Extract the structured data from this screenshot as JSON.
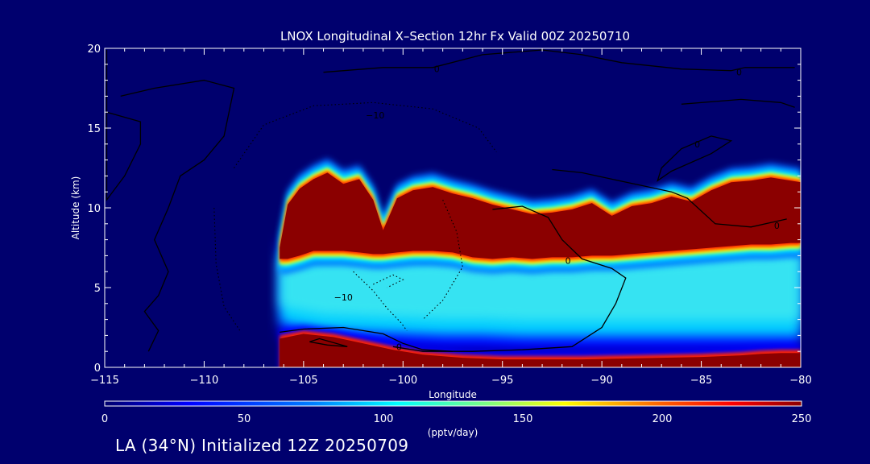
{
  "chart_data": {
    "type": "heatmap",
    "title": "LNOX Longitudinal X–Section 12hr  Fx Valid 00Z 20250710",
    "xlabel": "Longitude",
    "ylabel": "Altitude (km)",
    "xlim": [
      -115,
      -80
    ],
    "ylim": [
      0,
      20
    ],
    "x_ticks": [
      "−115",
      "−110",
      "−105",
      "−100",
      "−95",
      "−90",
      "−85",
      "−80"
    ],
    "x_tick_values": [
      -115,
      -110,
      -105,
      -100,
      -95,
      -90,
      -85,
      -80
    ],
    "y_ticks": [
      "0",
      "5",
      "10",
      "15",
      "20"
    ],
    "y_tick_values": [
      0,
      5,
      10,
      15,
      20
    ],
    "colorbar": {
      "label": "(pptv/day)",
      "min": 0,
      "max": 250,
      "ticks": [
        "0",
        "50",
        "100",
        "150",
        "200",
        "250"
      ],
      "tick_values": [
        0,
        50,
        100,
        150,
        200,
        250
      ]
    },
    "upper_layer": {
      "lon": [
        -106.2,
        -105.8,
        -105.2,
        -104.5,
        -103.8,
        -103,
        -102.2,
        -101.5,
        -101,
        -100.3,
        -99.5,
        -98.5,
        -97.5,
        -96.5,
        -95.5,
        -94.5,
        -93.5,
        -92.5,
        -91.5,
        -90.5,
        -89.5,
        -88.5,
        -87.5,
        -86.5,
        -85.5,
        -84.5,
        -83.5,
        -82.5,
        -81.5,
        -80.5,
        -80
      ],
      "top_km": [
        7.5,
        10.2,
        11.2,
        11.8,
        12.2,
        11.5,
        11.8,
        10.5,
        8.6,
        10.6,
        11.1,
        11.3,
        10.9,
        10.6,
        10.2,
        9.9,
        9.6,
        9.7,
        9.9,
        10.3,
        9.5,
        10.1,
        10.3,
        10.7,
        10.4,
        11.1,
        11.6,
        11.7,
        11.9,
        11.7,
        11.6
      ],
      "bottom_km": [
        6.8,
        6.8,
        7.0,
        7.3,
        7.3,
        7.3,
        7.2,
        7.1,
        7.1,
        7.2,
        7.3,
        7.3,
        7.2,
        6.9,
        6.8,
        6.9,
        6.8,
        6.9,
        6.9,
        7.0,
        7.0,
        7.1,
        7.2,
        7.3,
        7.4,
        7.5,
        7.6,
        7.7,
        7.7,
        7.8,
        7.8
      ],
      "value": 250
    },
    "mid_layer": {
      "lon": [
        -106.2,
        -105,
        -104,
        -102,
        -100,
        -98,
        -96,
        -94,
        -92,
        -90,
        -88,
        -86,
        -84,
        -82,
        -80
      ],
      "top_km": [
        7.5,
        7.0,
        7.3,
        7.3,
        7.2,
        7.3,
        7.2,
        6.9,
        6.9,
        7.0,
        7.1,
        7.3,
        7.5,
        7.7,
        7.8
      ],
      "bottom_km": [
        2.8,
        2.5,
        2.3,
        2.2,
        2.1,
        2.0,
        2.0,
        1.9,
        1.9,
        1.9,
        1.9,
        1.9,
        1.9,
        1.9,
        1.9
      ],
      "value": 90
    },
    "low_layer": {
      "lon": [
        -106.2,
        -105,
        -103.5,
        -102,
        -100.5,
        -99,
        -97,
        -95,
        -93,
        -91,
        -89,
        -87,
        -85,
        -83,
        -82,
        -81,
        -80
      ],
      "top_km": [
        1.8,
        2.1,
        1.9,
        1.5,
        1.1,
        0.8,
        0.6,
        0.5,
        0.5,
        0.5,
        0.55,
        0.6,
        0.65,
        0.75,
        0.85,
        0.9,
        0.9
      ],
      "value": 250
    },
    "contours": [
      {
        "label": "0",
        "style": "solid"
      },
      {
        "label": "−10",
        "style": "dotted"
      }
    ],
    "contour_labels": [
      {
        "text": "0",
        "x": -98.3,
        "y": 18.7
      },
      {
        "text": "0",
        "x": -83.1,
        "y": 18.5
      },
      {
        "text": "0",
        "x": -85.2,
        "y": 14.0
      },
      {
        "text": "0",
        "x": -81.2,
        "y": 8.9
      },
      {
        "text": "0",
        "x": -91.7,
        "y": 6.7
      },
      {
        "text": "0",
        "x": -100.2,
        "y": 1.3
      },
      {
        "text": "−10",
        "x": -101.4,
        "y": 15.8
      },
      {
        "text": "−10",
        "x": -103.0,
        "y": 4.4
      }
    ]
  },
  "footer": {
    "caption": "LA (34°N) Initialized 12Z 20250709"
  }
}
